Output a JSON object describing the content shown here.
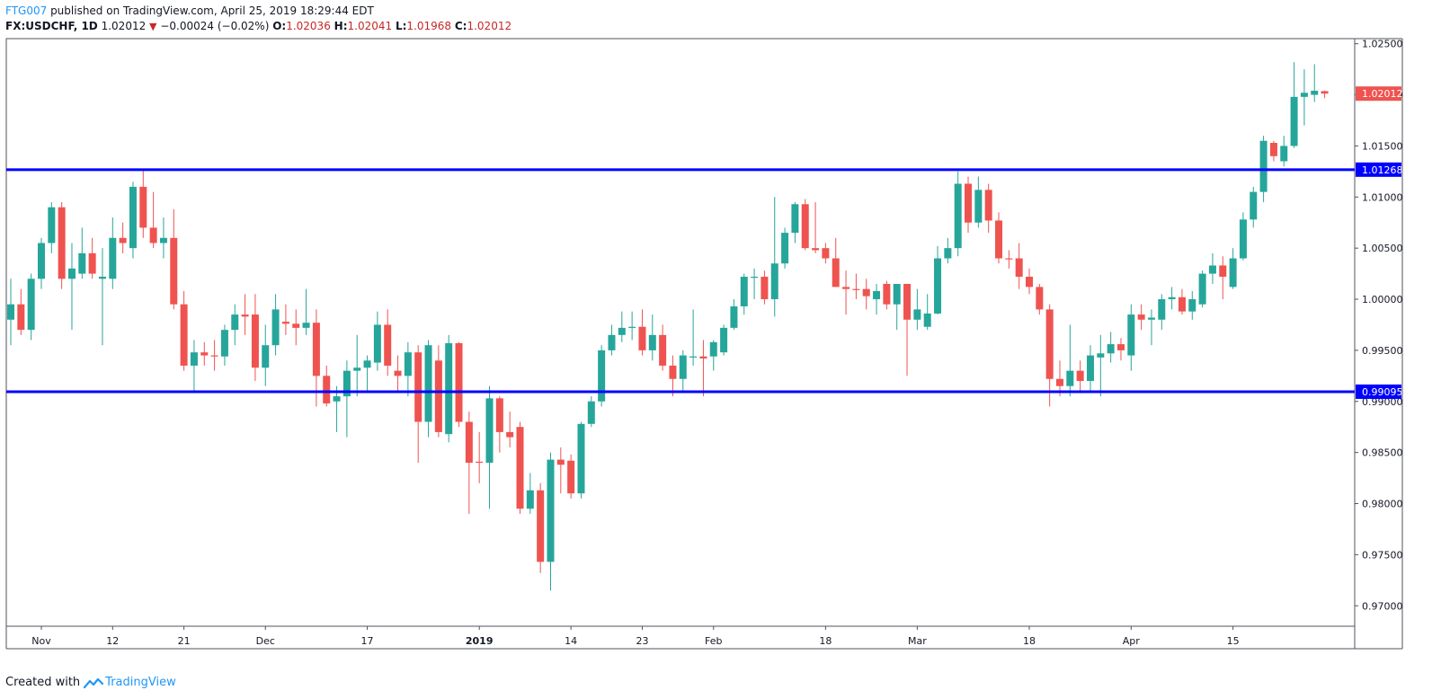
{
  "header": {
    "author": "FTG007",
    "published": "published on TradingView.com, April 25, 2019 18:29:44 EDT",
    "symbol": "FX:USDCHF, 1D",
    "last": "1.02012",
    "change": "−0.00024 (−0.02%)",
    "o_label": "O:",
    "o_value": "1.02036",
    "h_label": "H:",
    "h_value": "1.02041",
    "l_label": "L:",
    "l_value": "1.01968",
    "c_label": "C:",
    "c_value": "1.02012"
  },
  "footer": {
    "created": "Created with",
    "brand": "TradingView"
  },
  "colors": {
    "up": "#26a69a",
    "down": "#ef5350",
    "level": "#0000ff",
    "last_price": "#ef5350"
  },
  "chart_data": {
    "type": "candlestick",
    "symbol": "FX:USDCHF",
    "interval": "1D",
    "ylim": [
      0.968,
      1.0255
    ],
    "y_ticks": [
      0.97,
      0.975,
      0.98,
      0.985,
      0.99,
      0.995,
      1.0,
      1.005,
      1.01,
      1.015,
      1.02,
      1.025
    ],
    "y_tick_labels": [
      "0.97000",
      "0.97500",
      "0.98000",
      "0.98500",
      "0.99000",
      "0.99500",
      "1.00000",
      "1.00500",
      "1.01000",
      "1.01500",
      "1.02000",
      "1.02500"
    ],
    "x_ticks": [
      {
        "label": "Nov",
        "date": "2018-11-01"
      },
      {
        "label": "12",
        "date": "2018-11-12"
      },
      {
        "label": "21",
        "date": "2018-11-21"
      },
      {
        "label": "Dec",
        "date": "2018-12-03"
      },
      {
        "label": "17",
        "date": "2018-12-17"
      },
      {
        "label": "2019",
        "date": "2019-01-01",
        "bold": true
      },
      {
        "label": "14",
        "date": "2019-01-14"
      },
      {
        "label": "23",
        "date": "2019-01-23"
      },
      {
        "label": "Feb",
        "date": "2019-02-01"
      },
      {
        "label": "18",
        "date": "2019-02-18"
      },
      {
        "label": "Mar",
        "date": "2019-03-01"
      },
      {
        "label": "18",
        "date": "2019-03-18"
      },
      {
        "label": "Apr",
        "date": "2019-04-01"
      },
      {
        "label": "15",
        "date": "2019-04-15"
      }
    ],
    "levels": [
      {
        "value": 1.01268,
        "label": "1.01268"
      },
      {
        "value": 0.99095,
        "label": "0.99095"
      }
    ],
    "last_price": {
      "value": 1.02012,
      "label": "1.02012"
    },
    "candles": [
      {
        "date": "2018-10-29",
        "o": 0.998,
        "h": 1.002,
        "l": 0.9955,
        "c": 0.9995
      },
      {
        "date": "2018-10-30",
        "o": 0.9995,
        "h": 1.001,
        "l": 0.9965,
        "c": 0.997
      },
      {
        "date": "2018-10-31",
        "o": 0.997,
        "h": 1.0025,
        "l": 0.996,
        "c": 1.002
      },
      {
        "date": "2018-11-01",
        "o": 1.002,
        "h": 1.006,
        "l": 1.001,
        "c": 1.0055
      },
      {
        "date": "2018-11-02",
        "o": 1.0055,
        "h": 1.0095,
        "l": 1.0045,
        "c": 1.009
      },
      {
        "date": "2018-11-05",
        "o": 1.009,
        "h": 1.0095,
        "l": 1.001,
        "c": 1.002
      },
      {
        "date": "2018-11-06",
        "o": 1.002,
        "h": 1.0055,
        "l": 0.997,
        "c": 1.003
      },
      {
        "date": "2018-11-07",
        "o": 1.0025,
        "h": 1.007,
        "l": 1.002,
        "c": 1.0045
      },
      {
        "date": "2018-11-08",
        "o": 1.0045,
        "h": 1.006,
        "l": 1.002,
        "c": 1.0025
      },
      {
        "date": "2018-11-09",
        "o": 1.002,
        "h": 1.005,
        "l": 0.9955,
        "c": 1.0022
      },
      {
        "date": "2018-11-12",
        "o": 1.002,
        "h": 1.008,
        "l": 1.001,
        "c": 1.006
      },
      {
        "date": "2018-11-13",
        "o": 1.006,
        "h": 1.0075,
        "l": 1.0045,
        "c": 1.0055
      },
      {
        "date": "2018-11-14",
        "o": 1.005,
        "h": 1.0115,
        "l": 1.004,
        "c": 1.011
      },
      {
        "date": "2018-11-15",
        "o": 1.011,
        "h": 1.0128,
        "l": 1.006,
        "c": 1.007
      },
      {
        "date": "2018-11-16",
        "o": 1.007,
        "h": 1.0105,
        "l": 1.005,
        "c": 1.0055
      },
      {
        "date": "2018-11-19",
        "o": 1.0055,
        "h": 1.008,
        "l": 1.004,
        "c": 1.006
      },
      {
        "date": "2018-11-20",
        "o": 1.006,
        "h": 1.0088,
        "l": 0.999,
        "c": 0.9995
      },
      {
        "date": "2018-11-21",
        "o": 0.9995,
        "h": 1.0008,
        "l": 0.993,
        "c": 0.9935
      },
      {
        "date": "2018-11-22",
        "o": 0.9935,
        "h": 0.996,
        "l": 0.991,
        "c": 0.9948
      },
      {
        "date": "2018-11-23",
        "o": 0.9948,
        "h": 0.9958,
        "l": 0.9935,
        "c": 0.9945
      },
      {
        "date": "2018-11-26",
        "o": 0.9945,
        "h": 0.996,
        "l": 0.993,
        "c": 0.9944
      },
      {
        "date": "2018-11-27",
        "o": 0.9944,
        "h": 0.9975,
        "l": 0.9935,
        "c": 0.997
      },
      {
        "date": "2018-11-28",
        "o": 0.997,
        "h": 0.9995,
        "l": 0.9955,
        "c": 0.9985
      },
      {
        "date": "2018-11-29",
        "o": 0.9985,
        "h": 1.0005,
        "l": 0.9965,
        "c": 0.9983
      },
      {
        "date": "2018-11-30",
        "o": 0.9985,
        "h": 1.0005,
        "l": 0.992,
        "c": 0.9933
      },
      {
        "date": "2018-12-03",
        "o": 0.9933,
        "h": 0.9975,
        "l": 0.9915,
        "c": 0.9955
      },
      {
        "date": "2018-12-04",
        "o": 0.9955,
        "h": 1.0005,
        "l": 0.9945,
        "c": 0.999
      },
      {
        "date": "2018-12-05",
        "o": 0.9978,
        "h": 0.9995,
        "l": 0.9965,
        "c": 0.9976
      },
      {
        "date": "2018-12-06",
        "o": 0.9976,
        "h": 0.999,
        "l": 0.9955,
        "c": 0.9972
      },
      {
        "date": "2018-12-07",
        "o": 0.9972,
        "h": 1.001,
        "l": 0.9965,
        "c": 0.9977
      },
      {
        "date": "2018-12-10",
        "o": 0.9977,
        "h": 0.999,
        "l": 0.9895,
        "c": 0.9925
      },
      {
        "date": "2018-12-11",
        "o": 0.9925,
        "h": 0.9935,
        "l": 0.9895,
        "c": 0.9898
      },
      {
        "date": "2018-12-12",
        "o": 0.99,
        "h": 0.9915,
        "l": 0.987,
        "c": 0.9905
      },
      {
        "date": "2018-12-13",
        "o": 0.9905,
        "h": 0.994,
        "l": 0.9865,
        "c": 0.993
      },
      {
        "date": "2018-12-14",
        "o": 0.993,
        "h": 0.9965,
        "l": 0.9905,
        "c": 0.9933
      },
      {
        "date": "2018-12-17",
        "o": 0.9933,
        "h": 0.9945,
        "l": 0.991,
        "c": 0.994
      },
      {
        "date": "2018-12-18",
        "o": 0.9938,
        "h": 0.9988,
        "l": 0.993,
        "c": 0.9975
      },
      {
        "date": "2018-12-19",
        "o": 0.9975,
        "h": 0.999,
        "l": 0.9925,
        "c": 0.9935
      },
      {
        "date": "2018-12-20",
        "o": 0.993,
        "h": 0.9945,
        "l": 0.991,
        "c": 0.9925
      },
      {
        "date": "2018-12-21",
        "o": 0.9925,
        "h": 0.9958,
        "l": 0.9905,
        "c": 0.9948
      },
      {
        "date": "2018-12-24",
        "o": 0.9948,
        "h": 0.9955,
        "l": 0.984,
        "c": 0.988
      },
      {
        "date": "2018-12-25",
        "o": 0.988,
        "h": 0.996,
        "l": 0.9865,
        "c": 0.9955
      },
      {
        "date": "2018-12-26",
        "o": 0.994,
        "h": 0.9955,
        "l": 0.9865,
        "c": 0.987
      },
      {
        "date": "2018-12-27",
        "o": 0.9868,
        "h": 0.9965,
        "l": 0.986,
        "c": 0.9957
      },
      {
        "date": "2018-12-28",
        "o": 0.9957,
        "h": 0.9958,
        "l": 0.9875,
        "c": 0.988
      },
      {
        "date": "2018-12-31",
        "o": 0.988,
        "h": 0.989,
        "l": 0.979,
        "c": 0.984
      },
      {
        "date": "2019-01-01",
        "o": 0.9841,
        "h": 0.987,
        "l": 0.982,
        "c": 0.984
      },
      {
        "date": "2019-01-02",
        "o": 0.984,
        "h": 0.9915,
        "l": 0.9795,
        "c": 0.9903
      },
      {
        "date": "2019-01-03",
        "o": 0.9903,
        "h": 0.9905,
        "l": 0.985,
        "c": 0.987
      },
      {
        "date": "2019-01-04",
        "o": 0.987,
        "h": 0.989,
        "l": 0.9855,
        "c": 0.9865
      },
      {
        "date": "2019-01-07",
        "o": 0.9875,
        "h": 0.988,
        "l": 0.979,
        "c": 0.9795
      },
      {
        "date": "2019-01-08",
        "o": 0.9795,
        "h": 0.983,
        "l": 0.979,
        "c": 0.9813
      },
      {
        "date": "2019-01-09",
        "o": 0.9813,
        "h": 0.982,
        "l": 0.9732,
        "c": 0.9743
      },
      {
        "date": "2019-01-10",
        "o": 0.9743,
        "h": 0.985,
        "l": 0.9715,
        "c": 0.9843
      },
      {
        "date": "2019-01-11",
        "o": 0.9843,
        "h": 0.9855,
        "l": 0.981,
        "c": 0.9838
      },
      {
        "date": "2019-01-14",
        "o": 0.9842,
        "h": 0.9848,
        "l": 0.9805,
        "c": 0.981
      },
      {
        "date": "2019-01-15",
        "o": 0.981,
        "h": 0.988,
        "l": 0.9805,
        "c": 0.9878
      },
      {
        "date": "2019-01-16",
        "o": 0.9878,
        "h": 0.9905,
        "l": 0.9875,
        "c": 0.99
      },
      {
        "date": "2019-01-17",
        "o": 0.99,
        "h": 0.9955,
        "l": 0.9895,
        "c": 0.995
      },
      {
        "date": "2019-01-18",
        "o": 0.995,
        "h": 0.9975,
        "l": 0.9945,
        "c": 0.9965
      },
      {
        "date": "2019-01-21",
        "o": 0.9965,
        "h": 0.9988,
        "l": 0.9958,
        "c": 0.9972
      },
      {
        "date": "2019-01-22",
        "o": 0.9972,
        "h": 0.9988,
        "l": 0.996,
        "c": 0.9973
      },
      {
        "date": "2019-01-23",
        "o": 0.9973,
        "h": 0.999,
        "l": 0.9945,
        "c": 0.995
      },
      {
        "date": "2019-01-24",
        "o": 0.995,
        "h": 0.9985,
        "l": 0.994,
        "c": 0.9965
      },
      {
        "date": "2019-01-25",
        "o": 0.9965,
        "h": 0.9975,
        "l": 0.993,
        "c": 0.9935
      },
      {
        "date": "2019-01-28",
        "o": 0.9935,
        "h": 0.9945,
        "l": 0.9905,
        "c": 0.9922
      },
      {
        "date": "2019-01-29",
        "o": 0.9922,
        "h": 0.995,
        "l": 0.991,
        "c": 0.9945
      },
      {
        "date": "2019-01-30",
        "o": 0.9944,
        "h": 0.999,
        "l": 0.9935,
        "c": 0.9944
      },
      {
        "date": "2019-01-31",
        "o": 0.9944,
        "h": 0.996,
        "l": 0.9905,
        "c": 0.9942
      },
      {
        "date": "2019-02-01",
        "o": 0.9944,
        "h": 0.996,
        "l": 0.993,
        "c": 0.9958
      },
      {
        "date": "2019-02-04",
        "o": 0.9948,
        "h": 0.9975,
        "l": 0.9945,
        "c": 0.9972
      },
      {
        "date": "2019-02-05",
        "o": 0.9972,
        "h": 1.0,
        "l": 0.997,
        "c": 0.9993
      },
      {
        "date": "2019-02-06",
        "o": 0.9993,
        "h": 1.0025,
        "l": 0.9985,
        "c": 1.0022
      },
      {
        "date": "2019-02-07",
        "o": 1.0022,
        "h": 1.003,
        "l": 1.0,
        "c": 1.0022
      },
      {
        "date": "2019-02-08",
        "o": 1.0022,
        "h": 1.0028,
        "l": 0.9995,
        "c": 1.0
      },
      {
        "date": "2019-02-11",
        "o": 1.0,
        "h": 1.01,
        "l": 0.9983,
        "c": 1.0035
      },
      {
        "date": "2019-02-12",
        "o": 1.0035,
        "h": 1.007,
        "l": 1.003,
        "c": 1.0065
      },
      {
        "date": "2019-02-13",
        "o": 1.0065,
        "h": 1.0095,
        "l": 1.0055,
        "c": 1.0093
      },
      {
        "date": "2019-02-14",
        "o": 1.0093,
        "h": 1.0098,
        "l": 1.0048,
        "c": 1.005
      },
      {
        "date": "2019-02-15",
        "o": 1.005,
        "h": 1.0095,
        "l": 1.0045,
        "c": 1.0048
      },
      {
        "date": "2019-02-18",
        "o": 1.005,
        "h": 1.0055,
        "l": 1.0035,
        "c": 1.004
      },
      {
        "date": "2019-02-19",
        "o": 1.004,
        "h": 1.006,
        "l": 1.0015,
        "c": 1.0012
      },
      {
        "date": "2019-02-20",
        "o": 1.0012,
        "h": 1.0028,
        "l": 0.9985,
        "c": 1.001
      },
      {
        "date": "2019-02-21",
        "o": 1.001,
        "h": 1.0025,
        "l": 1.0,
        "c": 1.0009
      },
      {
        "date": "2019-02-22",
        "o": 1.001,
        "h": 1.002,
        "l": 0.999,
        "c": 1.0003
      },
      {
        "date": "2019-02-25",
        "o": 1.0,
        "h": 1.0015,
        "l": 0.9985,
        "c": 1.0008
      },
      {
        "date": "2019-02-26",
        "o": 1.0015,
        "h": 1.0018,
        "l": 0.999,
        "c": 0.9995
      },
      {
        "date": "2019-02-27",
        "o": 0.9995,
        "h": 1.0015,
        "l": 0.997,
        "c": 1.0015
      },
      {
        "date": "2019-02-28",
        "o": 1.0015,
        "h": 1.0015,
        "l": 0.9925,
        "c": 0.998
      },
      {
        "date": "2019-03-01",
        "o": 0.998,
        "h": 1.001,
        "l": 0.997,
        "c": 0.999
      },
      {
        "date": "2019-03-04",
        "o": 0.9973,
        "h": 1.0005,
        "l": 0.997,
        "c": 0.9986
      },
      {
        "date": "2019-03-05",
        "o": 0.9986,
        "h": 1.0052,
        "l": 0.9985,
        "c": 1.004
      },
      {
        "date": "2019-03-06",
        "o": 1.004,
        "h": 1.006,
        "l": 1.0035,
        "c": 1.005
      },
      {
        "date": "2019-03-07",
        "o": 1.005,
        "h": 1.0125,
        "l": 1.0042,
        "c": 1.0113
      },
      {
        "date": "2019-03-08",
        "o": 1.0113,
        "h": 1.012,
        "l": 1.0065,
        "c": 1.0075
      },
      {
        "date": "2019-03-11",
        "o": 1.0075,
        "h": 1.012,
        "l": 1.007,
        "c": 1.0107
      },
      {
        "date": "2019-03-12",
        "o": 1.0107,
        "h": 1.0113,
        "l": 1.0065,
        "c": 1.0077
      },
      {
        "date": "2019-03-13",
        "o": 1.0077,
        "h": 1.0085,
        "l": 1.0035,
        "c": 1.004
      },
      {
        "date": "2019-03-14",
        "o": 1.004,
        "h": 1.0048,
        "l": 1.003,
        "c": 1.0039
      },
      {
        "date": "2019-03-15",
        "o": 1.004,
        "h": 1.0055,
        "l": 1.001,
        "c": 1.0022
      },
      {
        "date": "2019-03-18",
        "o": 1.0022,
        "h": 1.003,
        "l": 1.0005,
        "c": 1.0012
      },
      {
        "date": "2019-03-19",
        "o": 1.0012,
        "h": 1.0015,
        "l": 0.9985,
        "c": 0.999
      },
      {
        "date": "2019-03-20",
        "o": 0.999,
        "h": 0.9995,
        "l": 0.9895,
        "c": 0.9922
      },
      {
        "date": "2019-03-21",
        "o": 0.9922,
        "h": 0.994,
        "l": 0.9905,
        "c": 0.9915
      },
      {
        "date": "2019-03-22",
        "o": 0.9915,
        "h": 0.9975,
        "l": 0.9905,
        "c": 0.993
      },
      {
        "date": "2019-03-25",
        "o": 0.993,
        "h": 0.994,
        "l": 0.9908,
        "c": 0.992
      },
      {
        "date": "2019-03-26",
        "o": 0.992,
        "h": 0.9955,
        "l": 0.991,
        "c": 0.9945
      },
      {
        "date": "2019-03-27",
        "o": 0.9943,
        "h": 0.9965,
        "l": 0.9905,
        "c": 0.9947
      },
      {
        "date": "2019-03-28",
        "o": 0.9947,
        "h": 0.9968,
        "l": 0.9938,
        "c": 0.9956
      },
      {
        "date": "2019-03-29",
        "o": 0.9956,
        "h": 0.9962,
        "l": 0.994,
        "c": 0.995
      },
      {
        "date": "2019-04-01",
        "o": 0.9945,
        "h": 0.9995,
        "l": 0.993,
        "c": 0.9985
      },
      {
        "date": "2019-04-02",
        "o": 0.9985,
        "h": 0.9995,
        "l": 0.997,
        "c": 0.998
      },
      {
        "date": "2019-04-03",
        "o": 0.998,
        "h": 0.999,
        "l": 0.9955,
        "c": 0.9982
      },
      {
        "date": "2019-04-04",
        "o": 0.998,
        "h": 1.0005,
        "l": 0.997,
        "c": 1.0
      },
      {
        "date": "2019-04-05",
        "o": 1.0,
        "h": 1.0012,
        "l": 0.999,
        "c": 1.0002
      },
      {
        "date": "2019-04-08",
        "o": 1.0002,
        "h": 1.001,
        "l": 0.9985,
        "c": 0.9988
      },
      {
        "date": "2019-04-09",
        "o": 0.9988,
        "h": 1.0008,
        "l": 0.998,
        "c": 1.0
      },
      {
        "date": "2019-04-10",
        "o": 0.9995,
        "h": 1.0028,
        "l": 0.9992,
        "c": 1.0025
      },
      {
        "date": "2019-04-11",
        "o": 1.0025,
        "h": 1.0045,
        "l": 1.0015,
        "c": 1.0033
      },
      {
        "date": "2019-04-12",
        "o": 1.0033,
        "h": 1.0042,
        "l": 1.0,
        "c": 1.0022
      },
      {
        "date": "2019-04-15",
        "o": 1.0012,
        "h": 1.005,
        "l": 1.001,
        "c": 1.004
      },
      {
        "date": "2019-04-16",
        "o": 1.004,
        "h": 1.0085,
        "l": 1.0038,
        "c": 1.0078
      },
      {
        "date": "2019-04-17",
        "o": 1.0078,
        "h": 1.011,
        "l": 1.007,
        "c": 1.0105
      },
      {
        "date": "2019-04-18",
        "o": 1.0105,
        "h": 1.016,
        "l": 1.0095,
        "c": 1.0155
      },
      {
        "date": "2019-04-19",
        "o": 1.0153,
        "h": 1.0155,
        "l": 1.0135,
        "c": 1.014
      },
      {
        "date": "2019-04-22",
        "o": 1.0135,
        "h": 1.016,
        "l": 1.013,
        "c": 1.015
      },
      {
        "date": "2019-04-23",
        "o": 1.015,
        "h": 1.0232,
        "l": 1.0148,
        "c": 1.0198
      },
      {
        "date": "2019-04-24",
        "o": 1.0198,
        "h": 1.0225,
        "l": 1.017,
        "c": 1.0202
      },
      {
        "date": "2019-04-25",
        "o": 1.02,
        "h": 1.023,
        "l": 1.0193,
        "c": 1.0204
      },
      {
        "date": "2019-04-26",
        "o": 1.02036,
        "h": 1.02041,
        "l": 1.01968,
        "c": 1.02012
      }
    ]
  }
}
